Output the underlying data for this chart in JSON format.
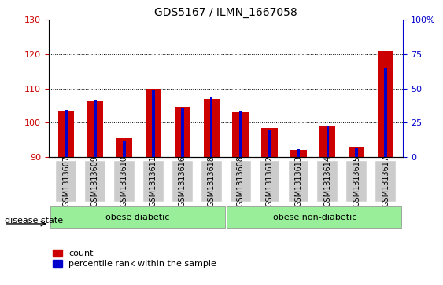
{
  "title": "GDS5167 / ILMN_1667058",
  "samples": [
    "GSM1313607",
    "GSM1313609",
    "GSM1313610",
    "GSM1313611",
    "GSM1313616",
    "GSM1313618",
    "GSM1313608",
    "GSM1313612",
    "GSM1313613",
    "GSM1313614",
    "GSM1313615",
    "GSM1313617"
  ],
  "red_values": [
    103.2,
    106.2,
    95.5,
    110.0,
    104.5,
    107.0,
    103.0,
    98.5,
    92.0,
    99.0,
    93.0,
    121.0
  ],
  "blue_values": [
    103.7,
    106.7,
    94.8,
    109.6,
    104.1,
    107.6,
    103.2,
    98.0,
    92.2,
    99.2,
    92.6,
    116.0
  ],
  "ymin": 90,
  "ymax": 130,
  "yticks": [
    90,
    100,
    110,
    120,
    130
  ],
  "group1_label": "obese diabetic",
  "group2_label": "obese non-diabetic",
  "disease_state_label": "disease state",
  "red_color": "#cc0000",
  "blue_color": "#0000cc",
  "group_bg_color": "#99ee99",
  "tick_bg_color": "#cccccc",
  "title_fontsize": 10,
  "tick_fontsize": 7,
  "legend_fontsize": 8,
  "right_tick_labels": [
    "0",
    "25",
    "50",
    "75",
    "100%"
  ]
}
